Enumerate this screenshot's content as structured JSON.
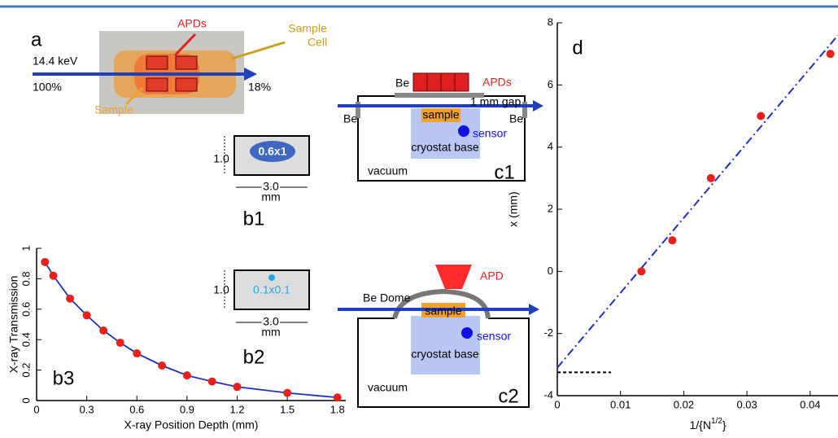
{
  "panels": {
    "a": {
      "label": "a",
      "energy": "14.4 keV",
      "in_pct": "100%",
      "out_pct": "18%",
      "apds": "APDs",
      "cell": [
        "Sample",
        "Cell"
      ],
      "sample": "Sample"
    },
    "b1": {
      "label": "b1",
      "spot": "0.6x1",
      "height": "1.0",
      "width": "3.0",
      "unit": "mm"
    },
    "b2": {
      "label": "b2",
      "spot": "0.1x0.1",
      "height": "1.0",
      "width": "3.0",
      "unit": "mm"
    },
    "c1": {
      "label": "c1",
      "apds": "APDs",
      "be_top": "Be",
      "be_left": "Be",
      "be_right": "Be",
      "gap": "1 mm gap",
      "sample": "sample",
      "sensor": "sensor",
      "base": "cryostat base",
      "vacuum": "vacuum"
    },
    "c2": {
      "label": "c2",
      "apd": "APD",
      "dome": "Be Dome",
      "sample": "sample",
      "sensor": "sensor",
      "base": "cryostat base",
      "vacuum": "vacuum"
    }
  },
  "chart_data": [
    {
      "type": "line",
      "annotation": "b3",
      "xlabel": "X-ray Position Depth (mm)",
      "ylabel": "X-ray Transmission",
      "x": [
        0.05,
        0.1,
        0.2,
        0.3,
        0.4,
        0.5,
        0.6,
        0.75,
        0.9,
        1.05,
        1.2,
        1.5,
        1.8
      ],
      "series": [
        {
          "color": "#1f2fbf",
          "marker_color": "#e8201c",
          "values": [
            0.91,
            0.82,
            0.67,
            0.56,
            0.46,
            0.38,
            0.31,
            0.23,
            0.165,
            0.125,
            0.09,
            0.05,
            0.02
          ]
        }
      ],
      "xlim": [
        0,
        1.85
      ],
      "ylim": [
        0,
        1
      ],
      "xticks": [
        0,
        0.3,
        0.6,
        0.9,
        1.2,
        1.5,
        1.8
      ],
      "yticks": [
        0,
        0.2,
        0.4,
        0.6,
        0.8,
        1
      ]
    },
    {
      "type": "scatter",
      "annotation": "d",
      "xlabel": {
        "base": "1/{N",
        "sup": "1/2",
        "end": "}"
      },
      "ylabel": "x (mm)",
      "x": [
        0.0133,
        0.0182,
        0.0243,
        0.0322,
        0.0432
      ],
      "series": [
        {
          "color": "#e8201c",
          "values": [
            0,
            1,
            3,
            5,
            7
          ]
        }
      ],
      "lines": [
        {
          "x": [
            0,
            0.0444
          ],
          "y": [
            -3.1,
            7.6
          ],
          "color": "#1f2fbf",
          "dash": "10 4 2 4"
        },
        {
          "x": [
            0,
            0.0085
          ],
          "y": [
            -3.25,
            -3.25
          ],
          "color": "#000000",
          "dash": "4 3"
        }
      ],
      "xlim": [
        0,
        0.0444
      ],
      "ylim": [
        -4,
        8
      ],
      "xticks": [
        0,
        0.01,
        0.02,
        0.03,
        0.04
      ],
      "yticks": [
        -4,
        -2,
        0,
        2,
        4,
        6,
        8
      ]
    }
  ]
}
